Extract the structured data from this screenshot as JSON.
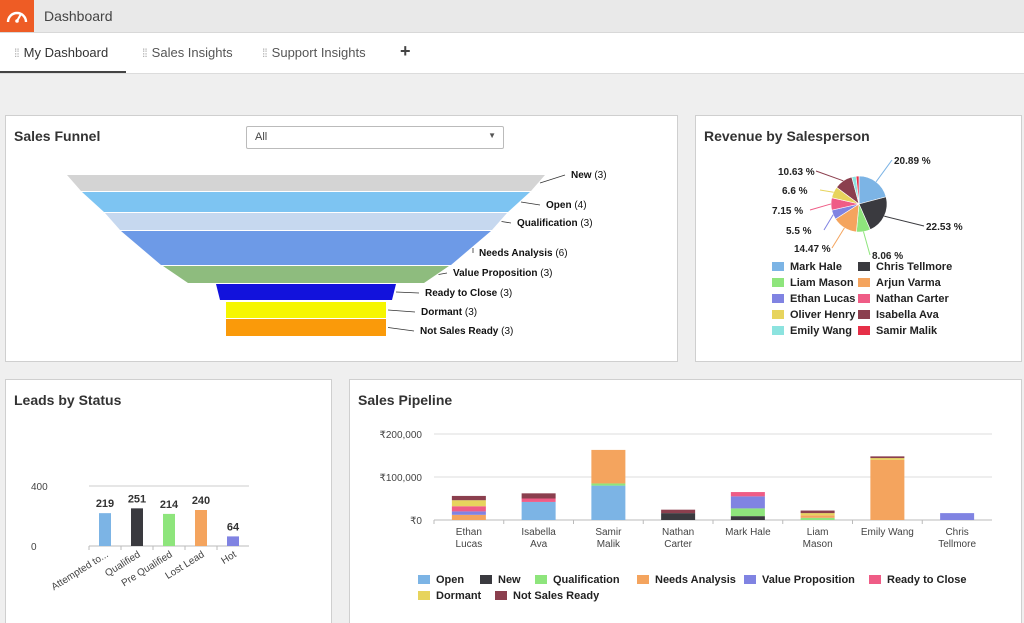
{
  "app": {
    "title": "Dashboard"
  },
  "tabs": [
    {
      "label": "My Dashboard",
      "active": true
    },
    {
      "label": "Sales Insights",
      "active": false
    },
    {
      "label": "Support Insights",
      "active": false
    }
  ],
  "add_tab_label": "+",
  "funnel": {
    "title": "Sales Funnel",
    "filter": {
      "selected": "All"
    },
    "chart_data": {
      "type": "funnel",
      "stages": [
        {
          "name": "New",
          "count": 3,
          "color": "#d4d4d4"
        },
        {
          "name": "Open",
          "count": 4,
          "color": "#7dc4f2"
        },
        {
          "name": "Qualification",
          "count": 3,
          "color": "#c6d8ef"
        },
        {
          "name": "Needs Analysis",
          "count": 6,
          "color": "#6d9ae7"
        },
        {
          "name": "Value Proposition",
          "count": 3,
          "color": "#8ebc7e"
        },
        {
          "name": "Ready to Close",
          "count": 3,
          "color": "#1212dc"
        },
        {
          "name": "Dormant",
          "count": 3,
          "color": "#f6f600"
        },
        {
          "name": "Not Sales Ready",
          "count": 3,
          "color": "#fa9a0a"
        }
      ]
    }
  },
  "revenue": {
    "title": "Revenue by Salesperson",
    "chart_data": {
      "type": "pie",
      "slices": [
        {
          "name": "Mark Hale",
          "value": 20.89,
          "label": "20.89 %",
          "color": "#7cb4e5"
        },
        {
          "name": "Chris Tellmore",
          "value": 22.53,
          "label": "22.53 %",
          "color": "#3a3a3f"
        },
        {
          "name": "Liam Mason",
          "value": 8.06,
          "label": "8.06 %",
          "color": "#8ee57c"
        },
        {
          "name": "Arjun Varma",
          "value": 14.47,
          "label": "14.47 %",
          "color": "#f4a45e"
        },
        {
          "name": "Ethan Lucas",
          "value": 5.5,
          "label": "5.5 %",
          "color": "#8083e2"
        },
        {
          "name": "Nathan Carter",
          "value": 7.15,
          "label": "7.15 %",
          "color": "#ef5c86"
        },
        {
          "name": "Oliver Henry",
          "value": 6.6,
          "label": "6.6 %",
          "color": "#e7d45d"
        },
        {
          "name": "Isabella Ava",
          "value": 10.63,
          "label": "10.63 %",
          "color": "#8b3f4e"
        },
        {
          "name": "Emily Wang",
          "value": 2.5,
          "label": "",
          "color": "#8ce3df"
        },
        {
          "name": "Samir Malik",
          "value": 1.67,
          "label": "",
          "color": "#e62f48"
        }
      ],
      "legend": [
        {
          "name": "Mark Hale",
          "color": "#7cb4e5"
        },
        {
          "name": "Chris Tellmore",
          "color": "#3a3a3f"
        },
        {
          "name": "Liam Mason",
          "color": "#8ee57c"
        },
        {
          "name": "Arjun Varma",
          "color": "#f4a45e"
        },
        {
          "name": "Ethan Lucas",
          "color": "#8083e2"
        },
        {
          "name": "Nathan Carter",
          "color": "#ef5c86"
        },
        {
          "name": "Oliver Henry",
          "color": "#e7d45d"
        },
        {
          "name": "Isabella Ava",
          "color": "#8b3f4e"
        },
        {
          "name": "Emily Wang",
          "color": "#8ce3df"
        },
        {
          "name": "Samir Malik",
          "color": "#e62f48"
        }
      ]
    }
  },
  "leads": {
    "title": "Leads by Status",
    "chart_data": {
      "type": "bar",
      "categories": [
        "Attempted to...",
        "Qualified",
        "Pre Qualified",
        "Lost Lead",
        "Hot"
      ],
      "values": [
        219,
        251,
        214,
        240,
        64
      ],
      "colors": [
        "#7cb4e5",
        "#3a3a3f",
        "#8ee57c",
        "#f4a45e",
        "#8083e2"
      ],
      "y_ticks": [
        "400",
        "0"
      ],
      "ylim": [
        0,
        400
      ]
    }
  },
  "pipeline": {
    "title": "Sales Pipeline",
    "chart_data": {
      "type": "bar",
      "stacked": true,
      "y_ticks": [
        "₹200,000",
        "₹100,000",
        "₹0"
      ],
      "ylim": [
        0,
        200000
      ],
      "categories": [
        "Ethan Lucas",
        "Isabella Ava",
        "Samir Malik",
        "Nathan Carter",
        "Mark Hale",
        "Liam Mason",
        "Emily Wang",
        "Chris Tellmore"
      ],
      "series": [
        {
          "name": "Open",
          "color": "#7cb4e5",
          "values": [
            0,
            42000,
            80000,
            0,
            0,
            0,
            0,
            0
          ]
        },
        {
          "name": "New",
          "color": "#3a3a3f",
          "values": [
            0,
            0,
            0,
            16000,
            9000,
            0,
            0,
            0
          ]
        },
        {
          "name": "Qualification",
          "color": "#8ee57c",
          "values": [
            0,
            0,
            5000,
            0,
            18000,
            5000,
            0,
            0
          ]
        },
        {
          "name": "Needs Analysis",
          "color": "#f4a45e",
          "values": [
            12000,
            0,
            78000,
            0,
            0,
            6000,
            140000,
            0
          ]
        },
        {
          "name": "Value Proposition",
          "color": "#8083e2",
          "values": [
            8000,
            0,
            0,
            0,
            28000,
            0,
            0,
            16000
          ]
        },
        {
          "name": "Ready to Close",
          "color": "#ef5c86",
          "values": [
            12000,
            8000,
            0,
            0,
            10000,
            0,
            0,
            0
          ]
        },
        {
          "name": "Dormant",
          "color": "#e7d45d",
          "values": [
            14000,
            0,
            0,
            0,
            0,
            5000,
            4000,
            0
          ]
        },
        {
          "name": "Not Sales Ready",
          "color": "#8b3f4e",
          "values": [
            10000,
            12000,
            0,
            8000,
            0,
            6000,
            4000,
            0
          ]
        }
      ]
    }
  }
}
